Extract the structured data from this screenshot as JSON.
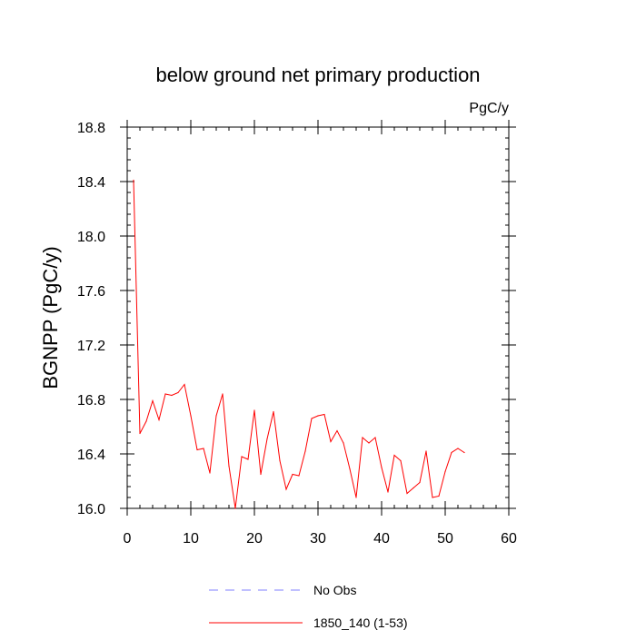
{
  "chart_data": {
    "type": "line",
    "title": "below ground net primary production",
    "units_label": "PgC/y",
    "xlabel": "",
    "ylabel": "BGNPP  (PgC/y)",
    "xlim": [
      0,
      60
    ],
    "ylim": [
      16.0,
      18.8
    ],
    "x_major_ticks": [
      0,
      10,
      20,
      30,
      40,
      50,
      60
    ],
    "x_minor_step": 2,
    "y_major_ticks": [
      16.0,
      16.4,
      16.8,
      17.2,
      17.6,
      18.0,
      18.4,
      18.8
    ],
    "y_minor_step": 0.08,
    "x_tick_labels": [
      "0",
      "10",
      "20",
      "30",
      "40",
      "50",
      "60"
    ],
    "y_tick_labels": [
      "16.0",
      "16.4",
      "16.8",
      "17.2",
      "17.6",
      "18.0",
      "18.4",
      "18.8"
    ],
    "grid": false,
    "legend_position": "bottom-center",
    "series": [
      {
        "name": "No Obs",
        "color": "#8080ff",
        "dash": "dashed",
        "x": [],
        "y": []
      },
      {
        "name": "1850_140 (1-53)",
        "color": "#ff0000",
        "dash": "solid",
        "x": [
          1,
          2,
          3,
          4,
          5,
          6,
          7,
          8,
          9,
          10,
          11,
          12,
          13,
          14,
          15,
          16,
          17,
          18,
          19,
          20,
          21,
          22,
          23,
          24,
          25,
          26,
          27,
          28,
          29,
          30,
          31,
          32,
          33,
          34,
          35,
          36,
          37,
          38,
          39,
          40,
          41,
          42,
          43,
          44,
          45,
          46,
          47,
          48,
          49,
          50,
          51,
          52,
          53
        ],
        "y": [
          18.41,
          16.55,
          16.64,
          16.79,
          16.65,
          16.84,
          16.83,
          16.85,
          16.91,
          16.68,
          16.43,
          16.44,
          16.26,
          16.68,
          16.84,
          16.31,
          16.0,
          16.38,
          16.36,
          16.72,
          16.25,
          16.51,
          16.71,
          16.35,
          16.14,
          16.25,
          16.24,
          16.42,
          16.66,
          16.68,
          16.69,
          16.49,
          16.57,
          16.48,
          16.29,
          16.08,
          16.52,
          16.48,
          16.52,
          16.3,
          16.12,
          16.39,
          16.35,
          16.11,
          16.15,
          16.19,
          16.42,
          16.08,
          16.09,
          16.27,
          16.41,
          16.44,
          16.41
        ]
      }
    ]
  }
}
